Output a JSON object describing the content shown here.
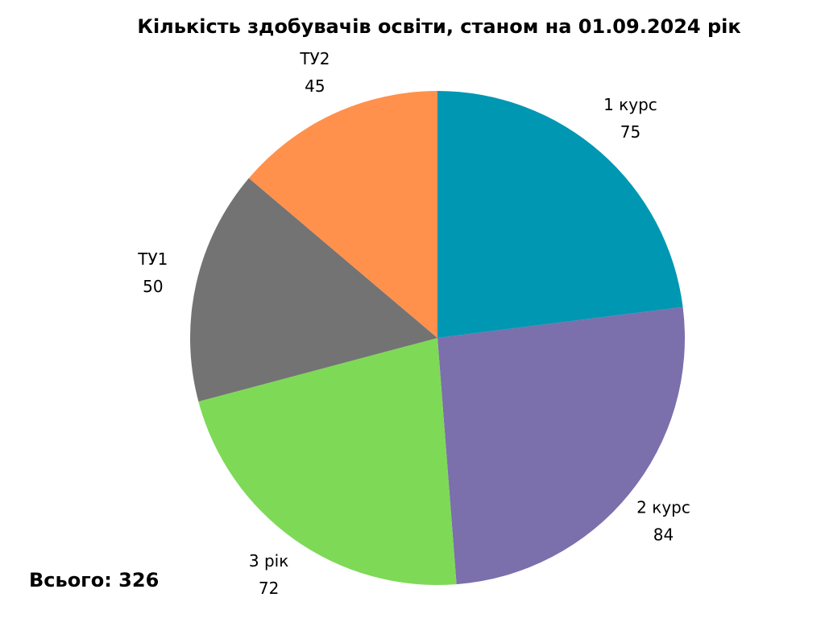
{
  "chart_data": {
    "type": "pie",
    "title": "Кількість здобувачів освіти, станом на 01.09.2024 рік",
    "categories": [
      "1 курс",
      "2 курс",
      "3 рік",
      "ТУ1",
      "ТУ2"
    ],
    "values": [
      75,
      84,
      72,
      50,
      45
    ],
    "colors": [
      "#0097b2",
      "#7b6fac",
      "#7ed957",
      "#737373",
      "#ff914d"
    ],
    "annotation": "Всього: 326"
  }
}
